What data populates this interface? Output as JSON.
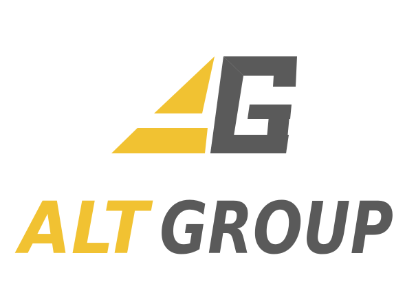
{
  "logo": {
    "word_primary": "ALT",
    "word_secondary": "GROUP",
    "emblem_letter": "G"
  },
  "colors": {
    "background": "#ffffff",
    "gold": "#f1c232",
    "charcoal": "#5a5a5a"
  }
}
